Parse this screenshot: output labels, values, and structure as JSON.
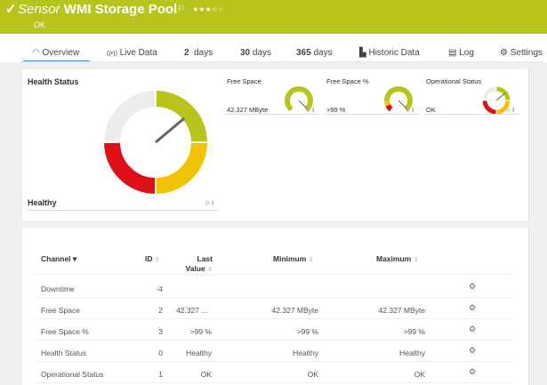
{
  "header": {
    "prefix": "Sensor",
    "title": "WMI Storage Pool",
    "status": "OK",
    "stars": "★★★☆☆",
    "flag_icon": "flag-icon",
    "color": "#b7c41b"
  },
  "tabs": [
    {
      "label": "Overview",
      "icon": "gauge-icon"
    },
    {
      "label": "Live Data",
      "icon": "live-icon"
    },
    {
      "num": "2",
      "label": "days"
    },
    {
      "num": "30",
      "label": "days"
    },
    {
      "num": "365",
      "label": "days"
    },
    {
      "label": "Historic Data",
      "icon": "chart-icon"
    },
    {
      "label": "Log",
      "icon": "log-icon"
    },
    {
      "label": "Settings",
      "icon": "gear-icon"
    }
  ],
  "overview": {
    "main": {
      "title": "Health Status",
      "value": "Healthy"
    },
    "gauges": [
      {
        "title": "Free Space",
        "value": "42.327 MByte"
      },
      {
        "title": "Free Space %",
        "value": ">99 %"
      },
      {
        "title": "Operational Status",
        "value": "OK"
      }
    ]
  },
  "table": {
    "headers": {
      "channel": "Channel",
      "id": "ID",
      "last1": "Last",
      "last2": "Value",
      "min": "Minimum",
      "max": "Maximum"
    },
    "rows": [
      {
        "channel": "Downtime",
        "id": "-4",
        "last": "",
        "min": "",
        "max": ""
      },
      {
        "channel": "Free Space",
        "id": "2",
        "last": "42.327 ...",
        "min": "42.327 MByte",
        "max": "42.327 MByte"
      },
      {
        "channel": "Free Space %",
        "id": "3",
        "last": ">99 %",
        "min": ">99 %",
        "max": ">99 %"
      },
      {
        "channel": "Health Status",
        "id": "0",
        "last": "Healthy",
        "min": "Healthy",
        "max": "Healthy"
      },
      {
        "channel": "Operational Status",
        "id": "1",
        "last": "OK",
        "min": "OK",
        "max": "OK"
      }
    ]
  }
}
